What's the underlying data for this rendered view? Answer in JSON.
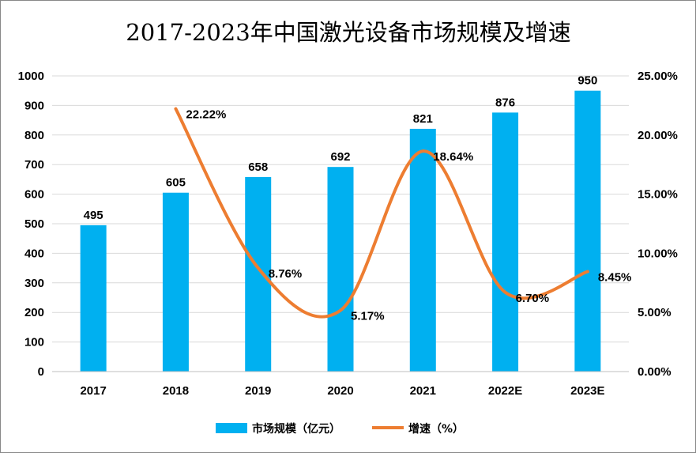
{
  "chart_data": {
    "type": "bar+line",
    "title": "2017-2023年中国激光设备市场规模及增速",
    "categories": [
      "2017",
      "2018",
      "2019",
      "2020",
      "2021",
      "2022E",
      "2023E"
    ],
    "series": [
      {
        "name": "市场规模（亿元）",
        "type": "bar",
        "axis": "left",
        "values": [
          495,
          605,
          658,
          692,
          821,
          876,
          950
        ],
        "labels": [
          "495",
          "605",
          "658",
          "692",
          "821",
          "876",
          "950"
        ],
        "color": "#00B0F0"
      },
      {
        "name": "增速（%）",
        "type": "line",
        "smooth": true,
        "axis": "right",
        "values": [
          null,
          22.22,
          8.76,
          5.17,
          18.64,
          6.7,
          8.45
        ],
        "labels": [
          "",
          "22.22%",
          "8.76%",
          "5.17%",
          "18.64%",
          "6.70%",
          "8.45%"
        ],
        "color": "#ED7D31"
      }
    ],
    "ylim_left": [
      0,
      1000
    ],
    "yticks_left": [
      "0",
      "100",
      "200",
      "300",
      "400",
      "500",
      "600",
      "700",
      "800",
      "900",
      "1000"
    ],
    "ylim_right": [
      0,
      25
    ],
    "yticks_right": [
      "0.00%",
      "5.00%",
      "10.00%",
      "15.00%",
      "20.00%",
      "25.00%"
    ],
    "grid": true,
    "legend": "bottom"
  }
}
